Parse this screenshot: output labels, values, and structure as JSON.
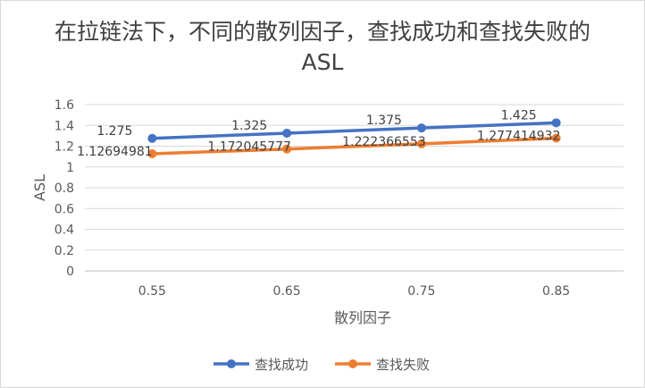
{
  "chart_data": {
    "type": "line",
    "title": "在拉链法下，不同的散列因子，查找成功和查找失败的ASL",
    "xlabel": "散列因子",
    "ylabel": "ASL",
    "categories": [
      "0.55",
      "0.65",
      "0.75",
      "0.85"
    ],
    "ylim": [
      0,
      1.6
    ],
    "yticks": [
      "0",
      "0.2",
      "0.4",
      "0.6",
      "0.8",
      "1",
      "1.2",
      "1.4",
      "1.6"
    ],
    "grid": true,
    "legend_position": "bottom",
    "series": [
      {
        "name": "查找成功",
        "color": "#4472c4",
        "values": [
          1.275,
          1.325,
          1.375,
          1.425
        ],
        "labels": [
          "1.275",
          "1.325",
          "1.375",
          "1.425"
        ]
      },
      {
        "name": "查找失败",
        "color": "#ed7d31",
        "values": [
          1.12694981,
          1.172045777,
          1.222366553,
          1.277414932
        ],
        "labels": [
          "1.12694981",
          "1.172045777",
          "1.222366553",
          "1.277414932"
        ]
      }
    ]
  }
}
